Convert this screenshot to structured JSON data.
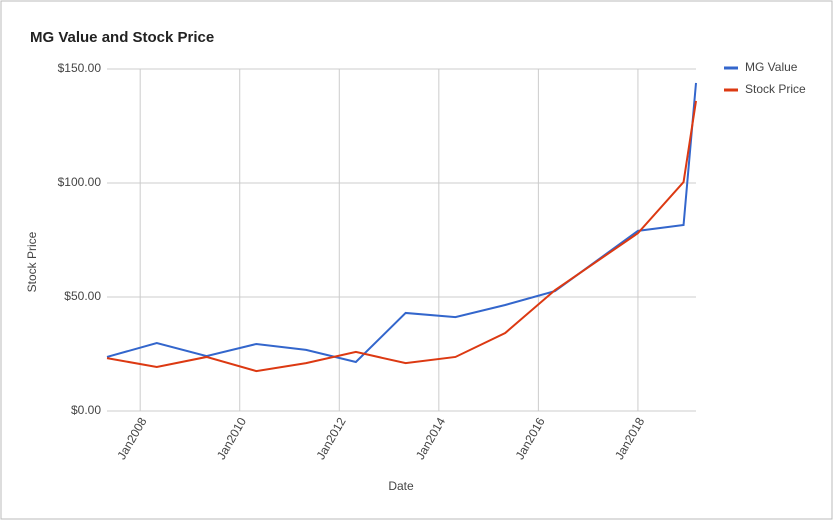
{
  "chart_data": {
    "type": "line",
    "title": "MG Value and Stock Price",
    "x_label": "Date",
    "y_label": "Stock Price",
    "x": [
      "2007-05",
      "2008-05",
      "2009-05",
      "2010-05",
      "2011-05",
      "2012-05",
      "2013-05",
      "2014-05",
      "2015-05",
      "2016-05",
      "2018-01",
      "2018-12",
      "2019-03"
    ],
    "series": [
      {
        "name": "MG Value",
        "color": "#3366cc",
        "values": [
          23.7,
          29.8,
          24.1,
          29.4,
          26.8,
          21.5,
          43,
          41.2,
          46.5,
          52.6,
          79,
          81.6,
          143.9
        ]
      },
      {
        "name": "Stock Price",
        "color": "#dc3912",
        "values": [
          23.2,
          19.3,
          23.7,
          17.5,
          21,
          25.9,
          21,
          23.7,
          34.2,
          53,
          78,
          100.4,
          136
        ]
      }
    ],
    "xlim": [
      "2007-05",
      "2019-03"
    ],
    "xticks": [
      {
        "value": "2008-01",
        "label": "Jan2008"
      },
      {
        "value": "2010-01",
        "label": "Jan2010"
      },
      {
        "value": "2012-01",
        "label": "Jan2012"
      },
      {
        "value": "2014-01",
        "label": "Jan2014"
      },
      {
        "value": "2016-01",
        "label": "Jan2016"
      },
      {
        "value": "2018-01",
        "label": "Jan2018"
      }
    ],
    "ylim": [
      0,
      150
    ],
    "yticks": [
      {
        "value": 0,
        "label": "$0.00"
      },
      {
        "value": 50,
        "label": "$50.00"
      },
      {
        "value": 100,
        "label": "$100.00"
      },
      {
        "value": 150,
        "label": "$150.00"
      }
    ],
    "grid": true,
    "legend": "right"
  }
}
